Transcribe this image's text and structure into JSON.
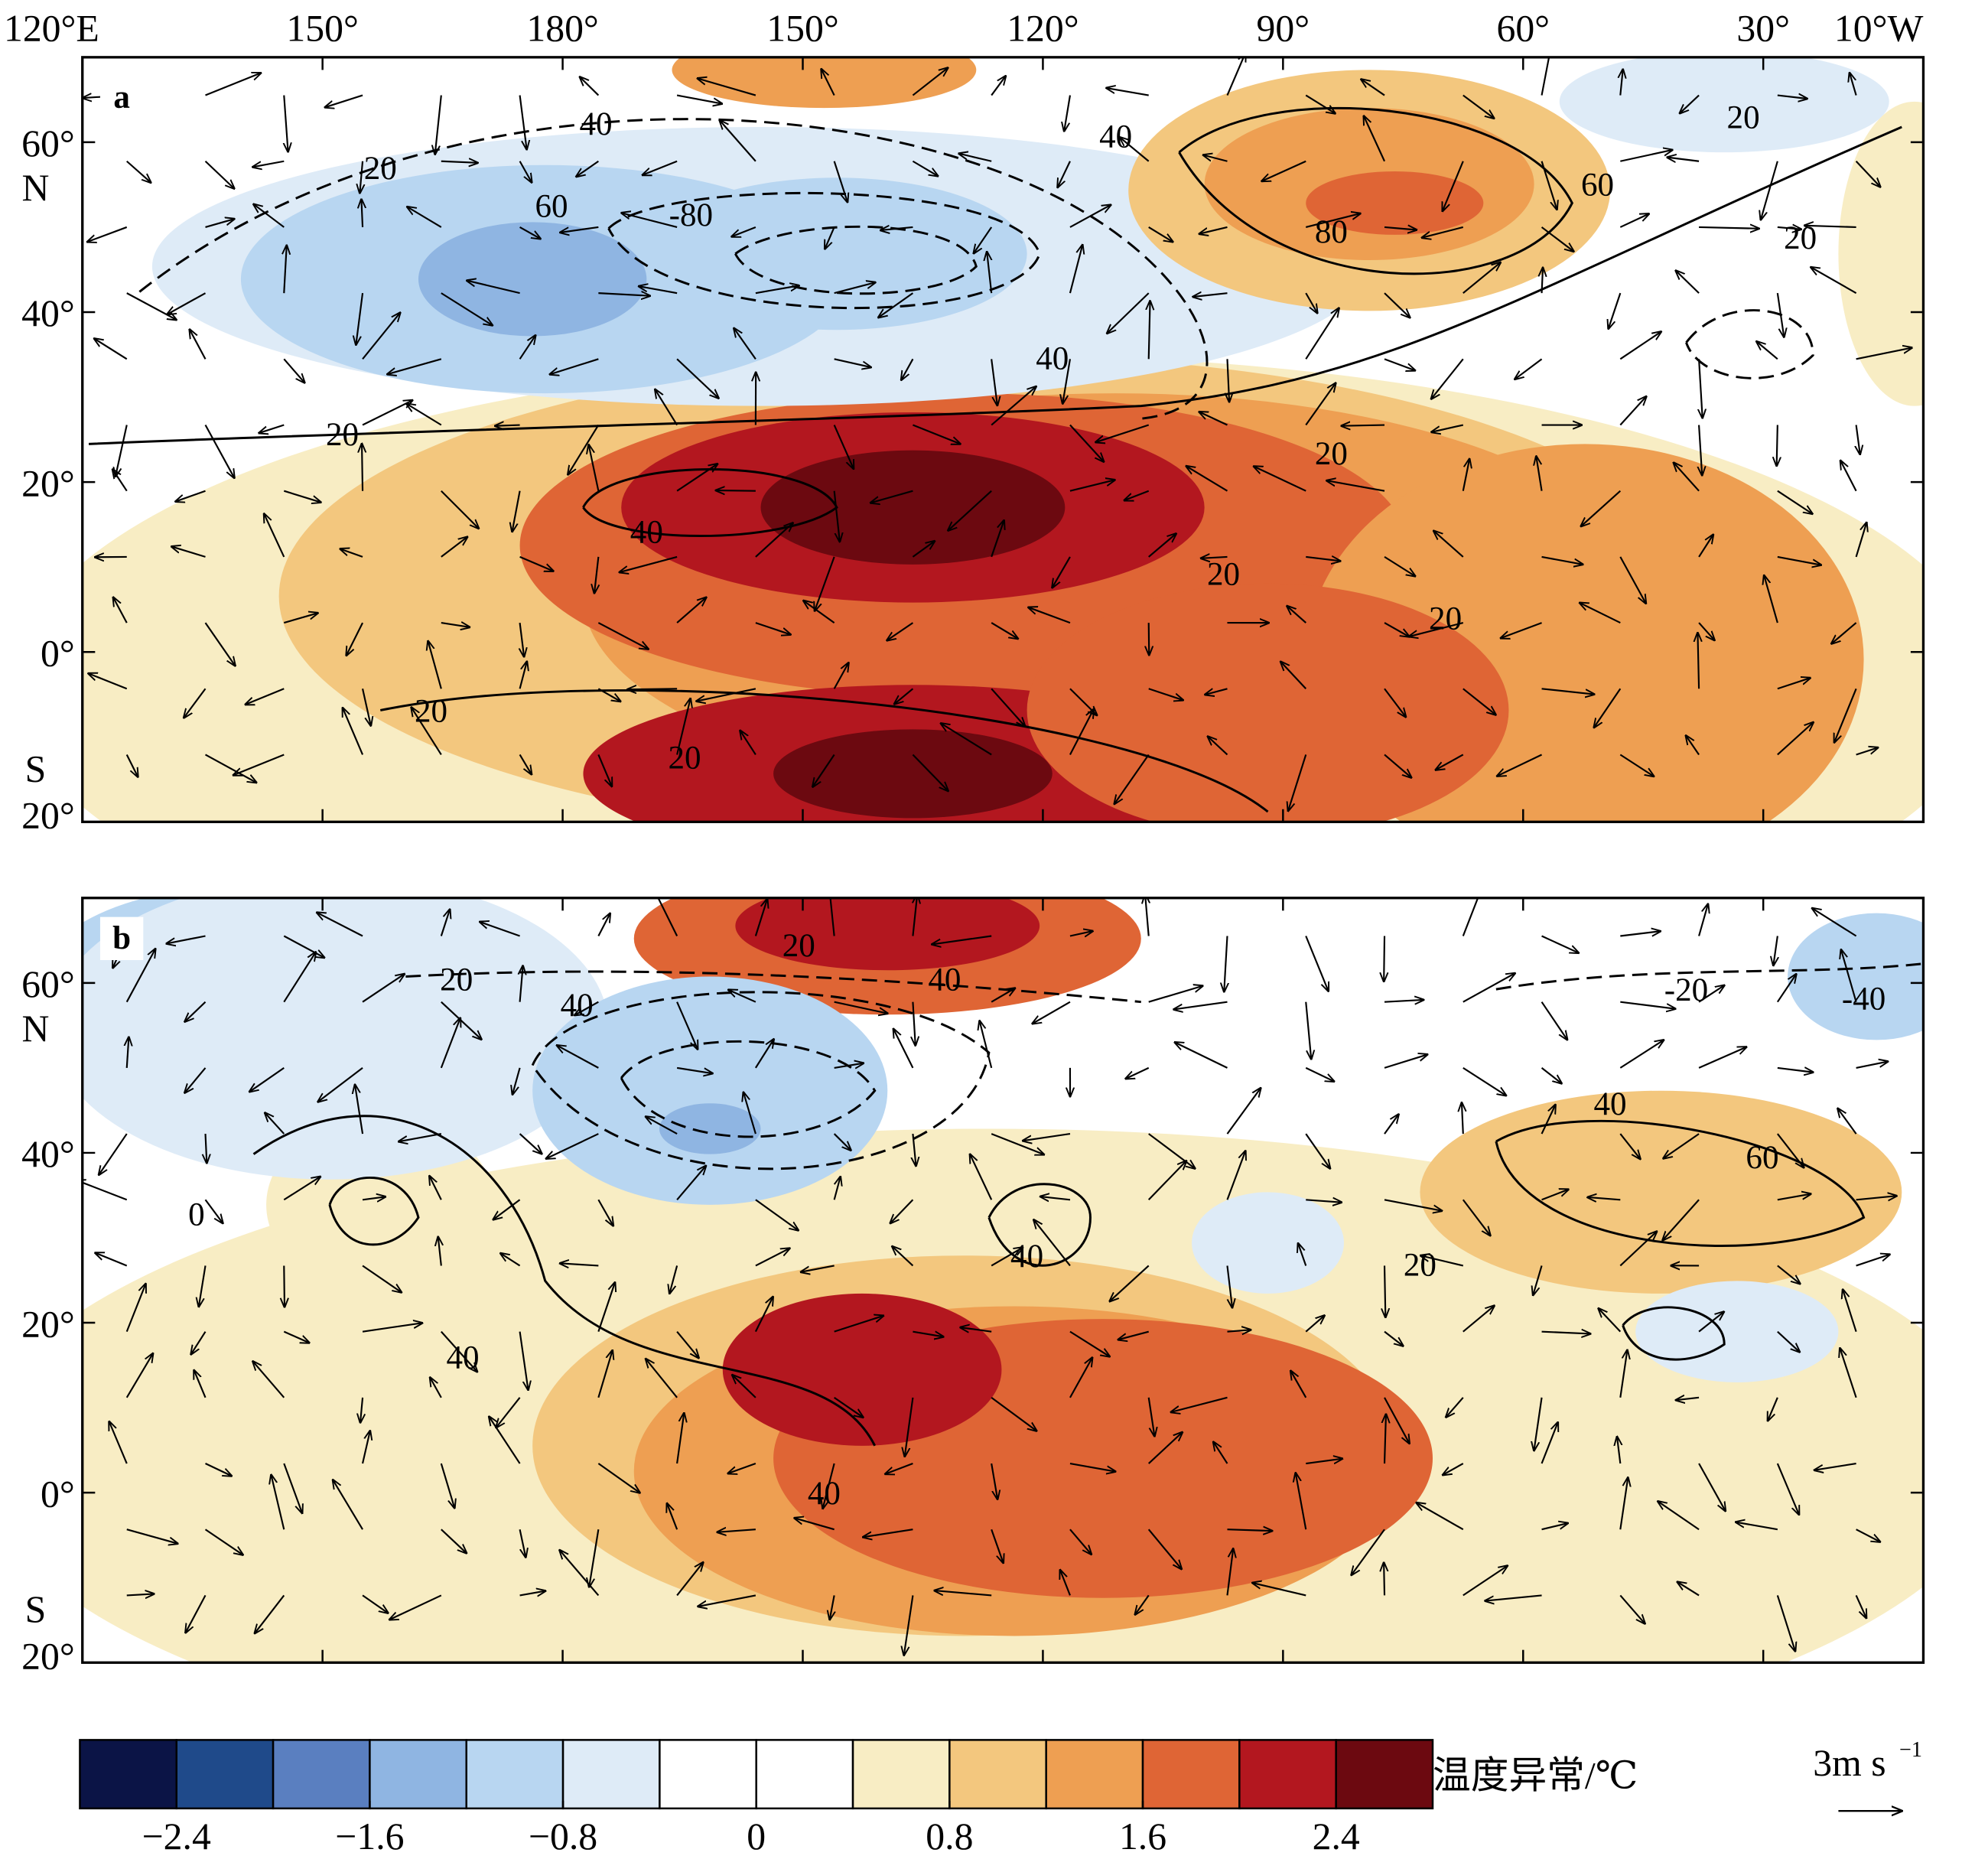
{
  "axes": {
    "xlim": [
      120,
      350
    ],
    "xticks": [
      {
        "value": 120,
        "label": "120°E"
      },
      {
        "value": 150,
        "label": "150°"
      },
      {
        "value": 180,
        "label": "180°"
      },
      {
        "value": 210,
        "label": "150°"
      },
      {
        "value": 240,
        "label": "120°"
      },
      {
        "value": 270,
        "label": "90°"
      },
      {
        "value": 300,
        "label": "60°"
      },
      {
        "value": 330,
        "label": "30°"
      },
      {
        "value": 350,
        "label": "10°W"
      }
    ],
    "ylim": [
      -20,
      70
    ],
    "yticks": [
      {
        "value": -20,
        "label": "20°"
      },
      {
        "value": 0,
        "label": "0°"
      },
      {
        "value": 20,
        "label": "20°"
      },
      {
        "value": 40,
        "label": "40°"
      },
      {
        "value": 60,
        "label": "60°"
      }
    ],
    "north": "N",
    "south": "S"
  },
  "panels": [
    {
      "label": "a",
      "contour_labels": [
        "20",
        "40",
        "60",
        "-80",
        "40",
        "60",
        "80",
        "20",
        "20",
        "40",
        "20",
        "40",
        "20",
        "20",
        "20",
        "20",
        "20"
      ]
    },
    {
      "label": "b",
      "contour_labels": [
        "0",
        "20",
        "40",
        "20",
        "40",
        "-20",
        "-40",
        "40",
        "60",
        "40",
        "20",
        "40",
        "40"
      ]
    }
  ],
  "colorbar": {
    "lim": [
      -2.8,
      2.8
    ],
    "colors": [
      "#0b1446",
      "#1f4a8a",
      "#5a7fc0",
      "#8fb5e2",
      "#b8d6f1",
      "#deebf7",
      "#ffffff",
      "#ffffff",
      "#f8edc4",
      "#f3c77e",
      "#ee9f52",
      "#df6535",
      "#b3171f",
      "#6c0910"
    ],
    "ticks": [
      {
        "value": -2.4,
        "label": "−2.4"
      },
      {
        "value": -1.6,
        "label": "−1.6"
      },
      {
        "value": -0.8,
        "label": "−0.8"
      },
      0,
      0.8,
      1.6,
      2.4
    ],
    "title": "温度异常/℃"
  },
  "vector_key": {
    "label": "3m s",
    "exponent": "−1"
  }
}
